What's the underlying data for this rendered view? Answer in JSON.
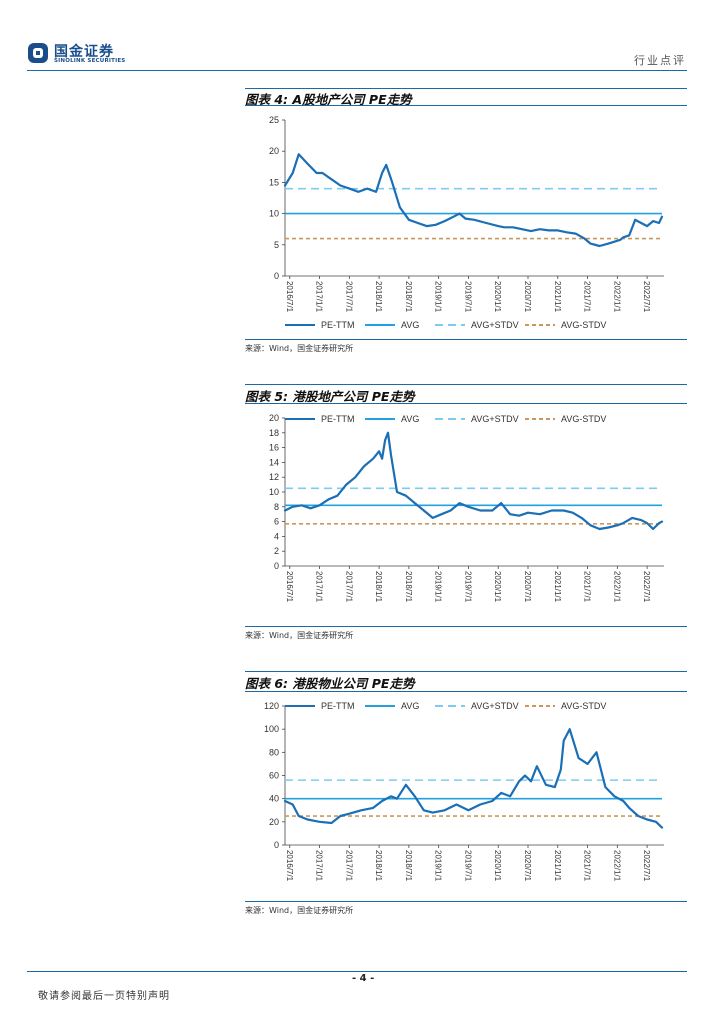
{
  "header": {
    "logo_cn": "国金证券",
    "logo_en": "SINOLINK SECURITIES",
    "report_type": "行业点评"
  },
  "colors": {
    "pe_ttm": "#1a6fb5",
    "avg": "#22a0e0",
    "avg_plus_stdv": "#7ccbf2",
    "avg_minus_stdv": "#c8995a"
  },
  "legend_labels": [
    "PE-TTM",
    "AVG",
    "AVG+STDV",
    "AVG-STDV"
  ],
  "x_ticks": [
    "2016/7/1",
    "2017/1/1",
    "2017/7/1",
    "2018/1/1",
    "2018/7/1",
    "2019/1/1",
    "2019/7/1",
    "2020/1/1",
    "2020/7/1",
    "2021/1/1",
    "2021/7/1",
    "2022/1/1",
    "2022/7/1"
  ],
  "figures": [
    {
      "title": "图表 4:  A股地产公司 PE走势",
      "source": "来源：Wind，国金证券研究所",
      "chart_data": {
        "type": "line",
        "legend_position": "bottom",
        "ylim": [
          0,
          25
        ],
        "yticks": [
          0,
          5,
          10,
          15,
          20,
          25
        ],
        "x_range": [
          2016.42,
          2022.75
        ],
        "series": [
          {
            "name": "PE-TTM",
            "x": [
              2016.42,
              2016.55,
              2016.65,
              2016.8,
              2016.95,
              2017.05,
              2017.2,
              2017.35,
              2017.5,
              2017.65,
              2017.8,
              2017.95,
              2018.05,
              2018.12,
              2018.22,
              2018.35,
              2018.5,
              2018.65,
              2018.8,
              2018.95,
              2019.1,
              2019.25,
              2019.35,
              2019.45,
              2019.6,
              2019.8,
              2020.0,
              2020.1,
              2020.25,
              2020.4,
              2020.55,
              2020.7,
              2020.85,
              2021.0,
              2021.15,
              2021.3,
              2021.45,
              2021.55,
              2021.7,
              2021.85,
              2021.95,
              2022.05,
              2022.1,
              2022.2,
              2022.3,
              2022.4,
              2022.5,
              2022.6,
              2022.7,
              2022.75
            ],
            "values": [
              14.5,
              16.5,
              19.5,
              18,
              16.5,
              16.5,
              15.5,
              14.5,
              14,
              13.5,
              14,
              13.5,
              16.5,
              17.8,
              15,
              11,
              9,
              8.5,
              8,
              8.2,
              8.8,
              9.5,
              10,
              9.2,
              9,
              8.5,
              8,
              7.8,
              7.8,
              7.5,
              7.2,
              7.5,
              7.3,
              7.3,
              7.0,
              6.8,
              6.0,
              5.2,
              4.8,
              5.2,
              5.5,
              5.8,
              6.2,
              6.5,
              9.0,
              8.5,
              8.0,
              8.8,
              8.5,
              9.5
            ]
          },
          {
            "name": "AVG",
            "constant": 10.0
          },
          {
            "name": "AVG+STDV",
            "constant": 14.0
          },
          {
            "name": "AVG-STDV",
            "constant": 6.0
          }
        ]
      }
    },
    {
      "title": "图表 5:  港股地产公司 PE走势",
      "source": "来源：Wind，国金证券研究所",
      "chart_data": {
        "type": "line",
        "legend_position": "top",
        "ylim": [
          0,
          20
        ],
        "yticks": [
          0,
          2,
          4,
          6,
          8,
          10,
          12,
          14,
          16,
          18,
          20
        ],
        "x_range": [
          2016.42,
          2022.75
        ],
        "series": [
          {
            "name": "PE-TTM",
            "x": [
              2016.42,
              2016.55,
              2016.7,
              2016.85,
              2017.0,
              2017.15,
              2017.3,
              2017.45,
              2017.6,
              2017.75,
              2017.9,
              2018.0,
              2018.05,
              2018.1,
              2018.15,
              2018.2,
              2018.3,
              2018.45,
              2018.6,
              2018.75,
              2018.9,
              2019.05,
              2019.2,
              2019.35,
              2019.5,
              2019.7,
              2019.9,
              2020.05,
              2020.2,
              2020.35,
              2020.5,
              2020.7,
              2020.9,
              2021.1,
              2021.25,
              2021.4,
              2021.55,
              2021.7,
              2021.85,
              2022.0,
              2022.1,
              2022.25,
              2022.4,
              2022.5,
              2022.6,
              2022.7,
              2022.75
            ],
            "values": [
              7.5,
              8.0,
              8.2,
              7.8,
              8.2,
              9.0,
              9.5,
              11.0,
              12.0,
              13.5,
              14.5,
              15.5,
              14.5,
              17.0,
              18.0,
              15.0,
              10.0,
              9.5,
              8.5,
              7.5,
              6.5,
              7.0,
              7.5,
              8.5,
              8.0,
              7.5,
              7.5,
              8.5,
              7.0,
              6.8,
              7.2,
              7.0,
              7.5,
              7.5,
              7.2,
              6.5,
              5.5,
              5.0,
              5.2,
              5.5,
              5.8,
              6.5,
              6.2,
              5.8,
              5.0,
              5.8,
              6.0
            ]
          },
          {
            "name": "AVG",
            "constant": 8.2
          },
          {
            "name": "AVG+STDV",
            "constant": 10.5
          },
          {
            "name": "AVG-STDV",
            "constant": 5.7
          }
        ]
      }
    },
    {
      "title": "图表 6:  港股物业公司 PE走势",
      "source": "来源：Wind，国金证券研究所",
      "chart_data": {
        "type": "line",
        "legend_position": "top",
        "ylim": [
          0,
          120
        ],
        "yticks": [
          0,
          20,
          40,
          60,
          80,
          100,
          120
        ],
        "x_range": [
          2016.42,
          2022.75
        ],
        "series": [
          {
            "name": "PE-TTM",
            "x": [
              2016.42,
              2016.55,
              2016.65,
              2016.8,
              2017.0,
              2017.2,
              2017.35,
              2017.5,
              2017.7,
              2017.9,
              2018.05,
              2018.2,
              2018.3,
              2018.45,
              2018.6,
              2018.75,
              2018.9,
              2019.1,
              2019.3,
              2019.5,
              2019.7,
              2019.9,
              2020.05,
              2020.2,
              2020.35,
              2020.45,
              2020.55,
              2020.65,
              2020.8,
              2020.95,
              2021.05,
              2021.1,
              2021.2,
              2021.35,
              2021.5,
              2021.65,
              2021.8,
              2021.95,
              2022.1,
              2022.2,
              2022.35,
              2022.5,
              2022.65,
              2022.75
            ],
            "values": [
              38,
              35,
              25,
              22,
              20,
              19,
              25,
              27,
              30,
              32,
              38,
              42,
              40,
              52,
              42,
              30,
              28,
              30,
              35,
              30,
              35,
              38,
              45,
              42,
              55,
              60,
              55,
              68,
              52,
              50,
              65,
              90,
              100,
              75,
              70,
              80,
              50,
              42,
              38,
              32,
              25,
              22,
              20,
              15
            ]
          },
          {
            "name": "AVG",
            "constant": 40
          },
          {
            "name": "AVG+STDV",
            "constant": 56
          },
          {
            "name": "AVG-STDV",
            "constant": 25
          }
        ]
      }
    }
  ],
  "footer": {
    "page_no": "- 4 -",
    "disclaimer": "敬请参阅最后一页特别声明"
  }
}
